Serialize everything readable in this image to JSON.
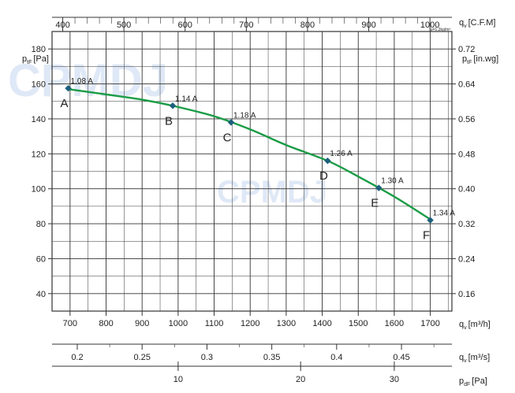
{
  "chart_data": {
    "type": "line",
    "x_unit_label": "q",
    "x_unit_sub": "v",
    "x_unit": "[m³/h]",
    "y_left_label": "p",
    "y_left_sub": "tF",
    "y_left_unit": "[Pa]",
    "y_right_label": "p",
    "y_right_sub": "tF",
    "y_right_unit": "[in.wg]",
    "top_axis_label": "q",
    "top_axis_sub": "v",
    "top_axis_unit": "[C.F.M]",
    "density_note": "ρ=1.2kg/m³",
    "secondary_axis_label": "q",
    "secondary_axis_sub": "v",
    "secondary_axis_unit": "[m³/s]",
    "dynamic_axis_label": "p",
    "dynamic_axis_sub": "dF",
    "dynamic_axis_unit": "[Pa]",
    "xlim": [
      650,
      1760
    ],
    "ylim": [
      30,
      190
    ],
    "x_ticks": [
      700,
      800,
      900,
      1000,
      1100,
      1200,
      1300,
      1400,
      1500,
      1600,
      1700
    ],
    "y_ticks": [
      40,
      60,
      80,
      100,
      120,
      140,
      160,
      180
    ],
    "y_right_ticks": [
      "0.16",
      "0.24",
      "0.32",
      "0.40",
      "0.48",
      "0.56",
      "0.64",
      "0.72"
    ],
    "top_ticks": [
      400,
      500,
      600,
      700,
      800,
      900,
      1000
    ],
    "secondary_ticks": [
      {
        "label": "0.2",
        "x": 720
      },
      {
        "label": "0.25",
        "x": 900
      },
      {
        "label": "0.3",
        "x": 1080
      },
      {
        "label": "0.35",
        "x": 1260
      },
      {
        "label": "0.4",
        "x": 1440
      },
      {
        "label": "0.45",
        "x": 1620
      }
    ],
    "dynamic_ticks": [
      {
        "label": "10",
        "x": 1000
      },
      {
        "label": "20",
        "x": 1340
      },
      {
        "label": "30",
        "x": 1600
      }
    ],
    "curve": [
      [
        695,
        157
      ],
      [
        800,
        154
      ],
      [
        900,
        151
      ],
      [
        985,
        147.5
      ],
      [
        1100,
        141.5
      ],
      [
        1200,
        134
      ],
      [
        1300,
        125
      ],
      [
        1415,
        116
      ],
      [
        1500,
        107
      ],
      [
        1600,
        95.5
      ],
      [
        1700,
        82.5
      ]
    ],
    "points": [
      {
        "letter": "A",
        "current": "1.08 A",
        "x": 695,
        "y": 157.5
      },
      {
        "letter": "B",
        "current": "1.14 A",
        "x": 985,
        "y": 147.5
      },
      {
        "letter": "C",
        "current": "1.18 A",
        "x": 1147,
        "y": 138
      },
      {
        "letter": "D",
        "current": "1.26 A",
        "x": 1415,
        "y": 116
      },
      {
        "letter": "E",
        "current": "1.30 A",
        "x": 1557,
        "y": 100.5
      },
      {
        "letter": "F",
        "current": "1.34 A",
        "x": 1700,
        "y": 82
      }
    ],
    "grid": true,
    "colors": {
      "curve": "#1a9c46",
      "marker": "#1d5f7c",
      "grid": "#333333",
      "watermark": "#dfe8f6"
    },
    "watermark": "CPMDJ"
  }
}
